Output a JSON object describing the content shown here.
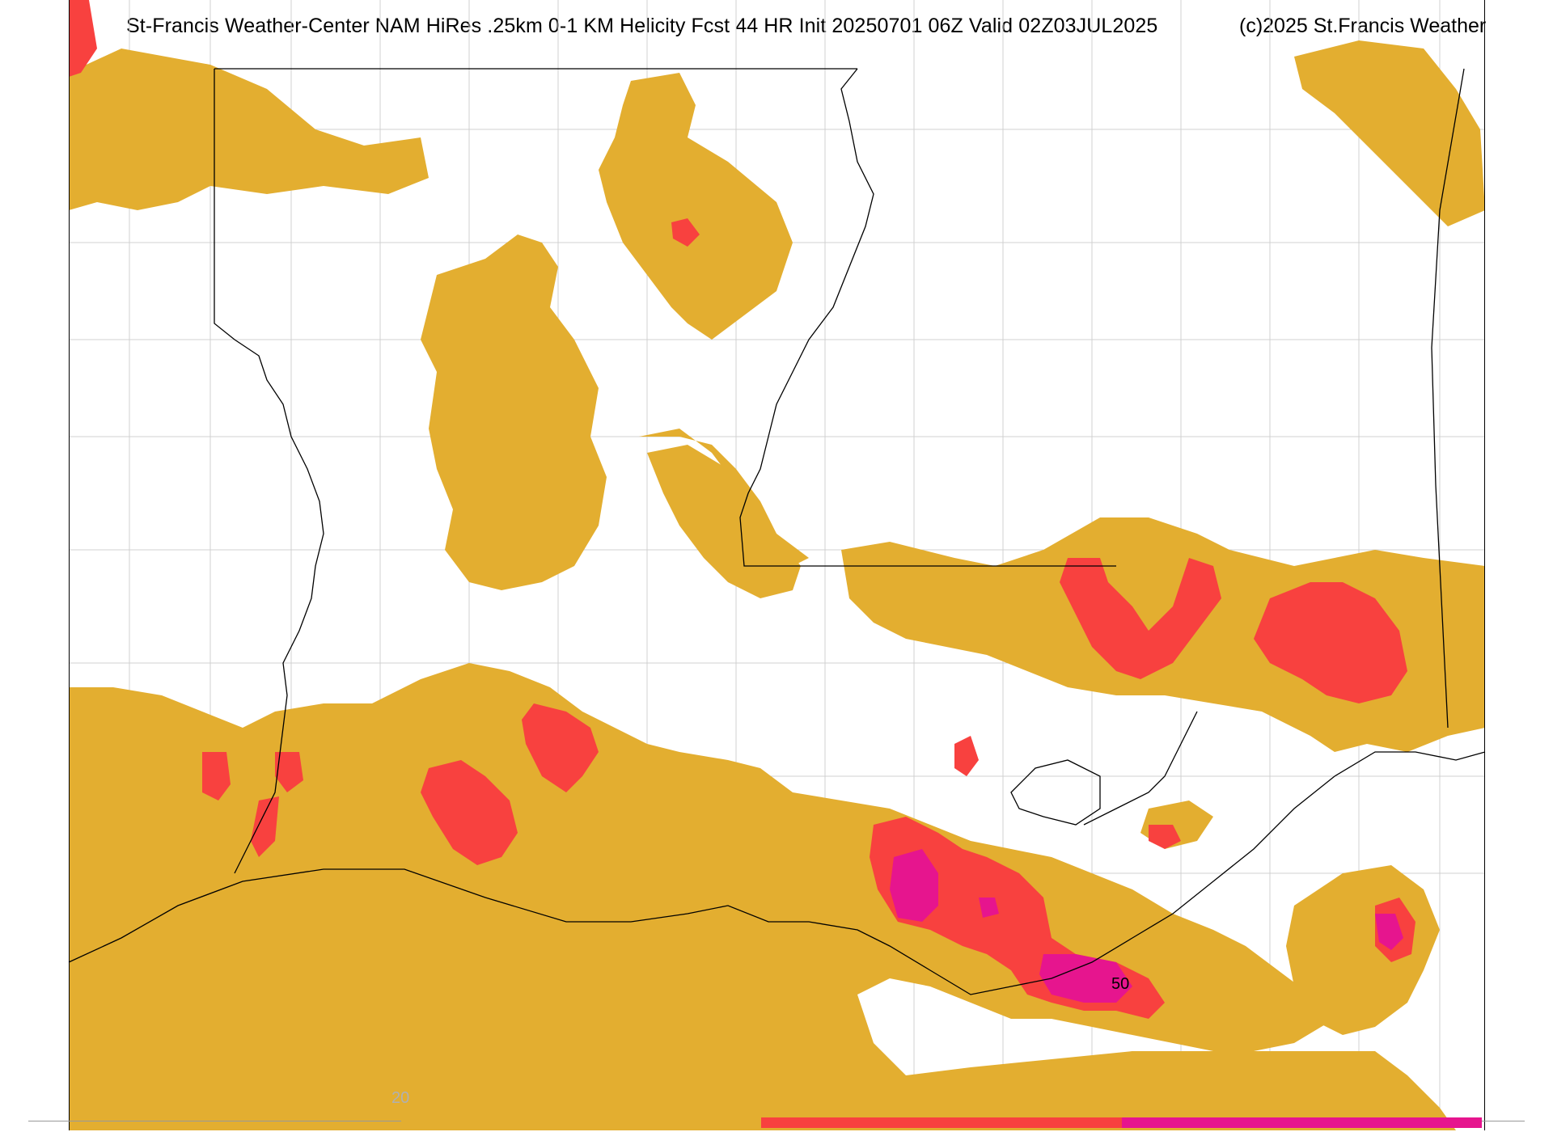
{
  "header": {
    "title": "St-Francis Weather-Center NAM HiRes .25km 0-1 KM Helicity Fcst 44 HR Init 20250701 06Z  Valid 02Z03JUL2025",
    "copyright": "(c)2025 St.Francis Weather"
  },
  "map": {
    "contour_label": "50",
    "colors": {
      "level_20": "#e3ae30",
      "level_40": "#f8413f",
      "level_60": "#e6158e",
      "county_lines": "#cccccc",
      "state_lines": "#000000",
      "background": "#ffffff"
    }
  },
  "colorbar": {
    "tick_label": "20",
    "segments": [
      "#e3ae30",
      "#f8413f",
      "#e6158e"
    ]
  }
}
